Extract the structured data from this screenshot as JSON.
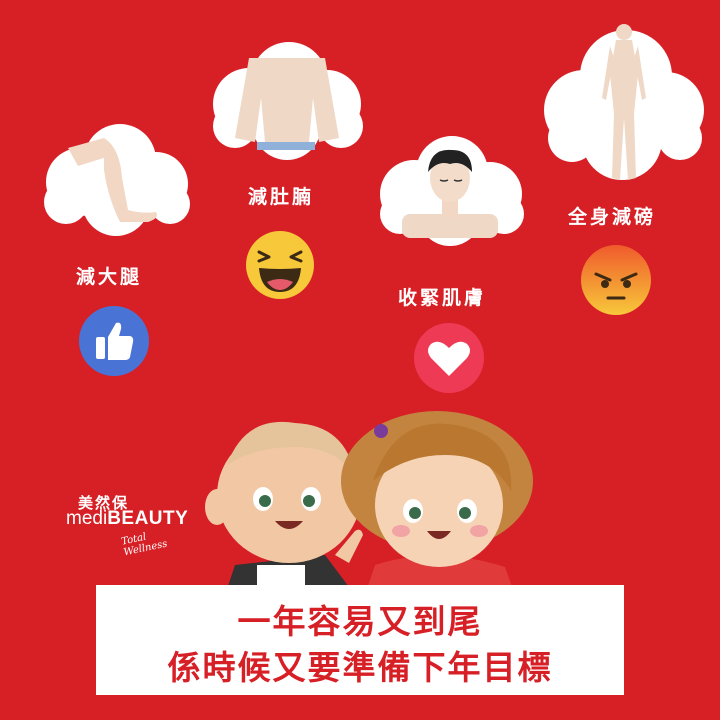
{
  "labels": {
    "thighs": "減大腿",
    "belly": "減肚腩",
    "skin": "收緊肌膚",
    "body": "全身減磅"
  },
  "reactions": [
    "thumbs-up-icon",
    "laughing-emoji-icon",
    "heart-icon",
    "angry-emoji-icon"
  ],
  "brand": {
    "chinese": "美然保",
    "english_prefix": "medi",
    "english_main": "BEAUTY",
    "tagline": "Total Wellness"
  },
  "banner": {
    "line1": "一年容易又到尾",
    "line2": "係時候又要準備下年目標"
  },
  "colors": {
    "background": "#d71f26",
    "banner_text": "#d71f26",
    "like_blue": "#4a73d6",
    "emoji_yellow": "#f7c83a",
    "angry_orange": "#f06a2a"
  }
}
